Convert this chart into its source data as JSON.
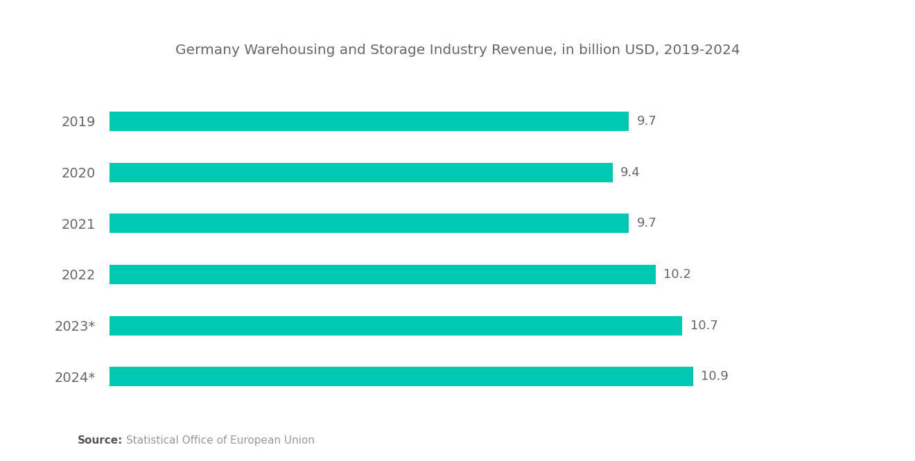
{
  "title": "Germany Warehousing and Storage Industry Revenue, in billion USD, 2019-2024",
  "categories": [
    "2019",
    "2020",
    "2021",
    "2022",
    "2023*",
    "2024*"
  ],
  "values": [
    9.7,
    9.4,
    9.7,
    10.2,
    10.7,
    10.9
  ],
  "bar_color": "#00C9B1",
  "bar_height": 0.38,
  "xlim": [
    0,
    13
  ],
  "label_color": "#666666",
  "title_color": "#666666",
  "ytick_color": "#666666",
  "source_bold": "Source:",
  "source_text": "Statistical Office of European Union",
  "bg_color": "#ffffff",
  "title_fontsize": 14.5,
  "label_fontsize": 13,
  "ytick_fontsize": 14,
  "source_fontsize": 11
}
